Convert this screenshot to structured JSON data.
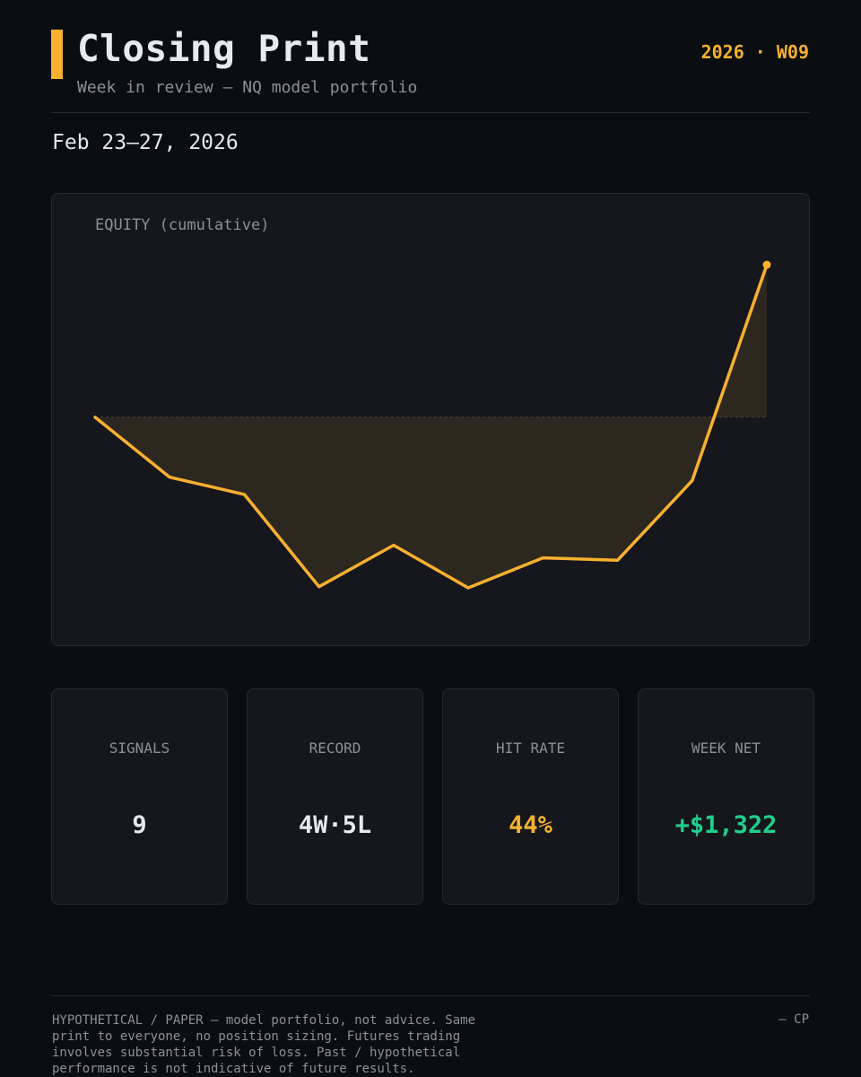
{
  "header": {
    "title": "Closing Print",
    "subtitle": "Week in review — NQ model portfolio",
    "week_tag": "2026 · W09",
    "date_range": "Feb 23–27, 2026"
  },
  "chart_data": {
    "type": "area",
    "title": "EQUITY (cumulative)",
    "xlabel": "",
    "ylabel": "",
    "x": [
      0,
      1,
      2,
      3,
      4,
      5,
      6,
      7,
      8,
      9
    ],
    "series": [
      {
        "values": [
          0,
          -520,
          -670,
          -1470,
          -1110,
          -1480,
          -1220,
          -1240,
          -550,
          1322
        ]
      }
    ],
    "ylim": [
      -1480,
      1322
    ],
    "baseline": 0,
    "grid": false,
    "legend": "none",
    "line_color": "#f7b030",
    "fill_color": "#2e2920"
  },
  "stats": [
    {
      "label": "SIGNALS",
      "value": "9",
      "color": "#e6e8eb"
    },
    {
      "label": "RECORD",
      "value": "4W·5L",
      "color": "#e6e8eb"
    },
    {
      "label": "HIT RATE",
      "value": "44%",
      "color": "#f7b030"
    },
    {
      "label": "WEEK NET",
      "value": "+$1,322",
      "color": "#1fd08a"
    }
  ],
  "footer": {
    "disclaimer": "HYPOTHETICAL / PAPER — model portfolio, not advice. Same print to everyone, no position sizing. Futures trading involves substantial risk of loss. Past / hypothetical performance is not indicative of future results.",
    "signoff": "— CP"
  },
  "colors": {
    "background": "#0b0e11",
    "card": "#15171c",
    "accent": "#f7b030",
    "positive": "#1fd08a"
  }
}
